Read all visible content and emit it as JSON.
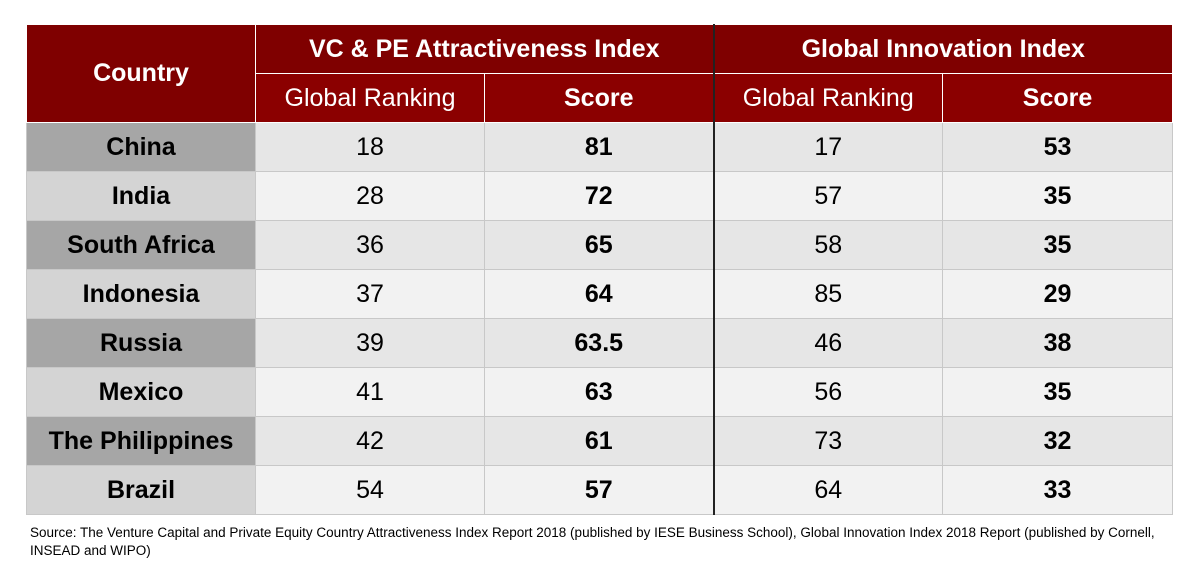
{
  "header": {
    "country_label": "Country",
    "group1": "VC & PE Attractiveness Index",
    "group2": "Global Innovation Index",
    "rank_label": "Global Ranking",
    "score_label": "Score"
  },
  "rows": [
    {
      "country": "China",
      "vc_rank": "18",
      "vc_score": "81",
      "gii_rank": "17",
      "gii_score": "53"
    },
    {
      "country": "India",
      "vc_rank": "28",
      "vc_score": "72",
      "gii_rank": "57",
      "gii_score": "35"
    },
    {
      "country": "South Africa",
      "vc_rank": "36",
      "vc_score": "65",
      "gii_rank": "58",
      "gii_score": "35"
    },
    {
      "country": "Indonesia",
      "vc_rank": "37",
      "vc_score": "64",
      "gii_rank": "85",
      "gii_score": "29"
    },
    {
      "country": "Russia",
      "vc_rank": "39",
      "vc_score": "63.5",
      "gii_rank": "46",
      "gii_score": "38"
    },
    {
      "country": "Mexico",
      "vc_rank": "41",
      "vc_score": "63",
      "gii_rank": "56",
      "gii_score": "35"
    },
    {
      "country": "The Philippines",
      "vc_rank": "42",
      "vc_score": "61",
      "gii_rank": "73",
      "gii_score": "32"
    },
    {
      "country": "Brazil",
      "vc_rank": "54",
      "vc_score": "57",
      "gii_rank": "64",
      "gii_score": "33"
    }
  ],
  "source": "Source: The Venture Capital and Private Equity Country Attractiveness Index Report 2018 (published by IESE Business School), Global Innovation Index 2018 Report (published by Cornell, INSEAD and WIPO)"
}
